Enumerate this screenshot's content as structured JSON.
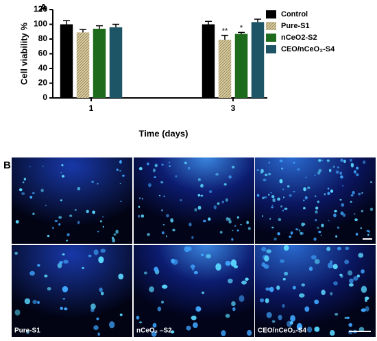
{
  "chart_data": {
    "type": "bar",
    "panel_label": "A",
    "xlabel": "Time (days)",
    "ylabel": "Cell viability %",
    "categories": [
      "1",
      "3"
    ],
    "ylim": [
      0,
      120
    ],
    "yticks": [
      0,
      20,
      40,
      60,
      80,
      100,
      120
    ],
    "series": [
      {
        "name": "Control",
        "color": "#000000",
        "values": [
          100,
          100
        ],
        "errors": [
          5,
          4
        ]
      },
      {
        "name": "Pure-S1",
        "color": "#c9bb8c",
        "pattern": "hatch",
        "values": [
          89,
          79
        ],
        "errors": [
          4,
          6
        ],
        "significance": [
          null,
          "**"
        ]
      },
      {
        "name": "nCeO2-S2",
        "color": "#1e6b1e",
        "values": [
          94,
          87
        ],
        "errors": [
          4,
          2
        ],
        "significance": [
          null,
          "*"
        ]
      },
      {
        "name": "CEO/nCeO₂-S4",
        "color": "#1d5566",
        "values": [
          96,
          103
        ],
        "errors": [
          4,
          4
        ]
      }
    ],
    "legend": "right"
  },
  "panel_b": {
    "label": "B",
    "bottom_row_labels": [
      "Pure-S1",
      "nCeO₂ –S2",
      "CEO/nCeO₂-S4"
    ]
  }
}
